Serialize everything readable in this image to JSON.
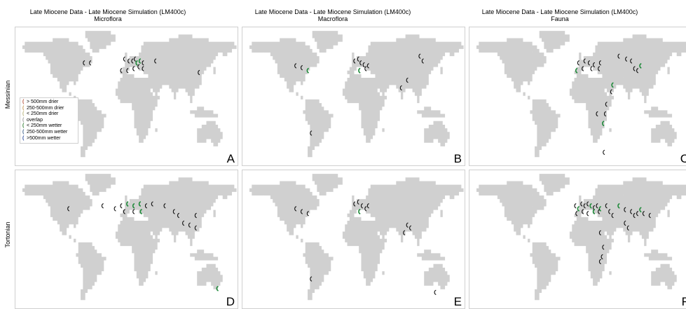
{
  "panels": [
    {
      "letter": "A",
      "title": "Late Miocene Data - Late Miocene Simulation (LM400c)",
      "subtitle": "Microflora",
      "row": "messinian"
    },
    {
      "letter": "B",
      "title": "Late Miocene Data - Late Miocene Simulation (LM400c)",
      "subtitle": "Macroflora",
      "row": "messinian"
    },
    {
      "letter": "C",
      "title": "Late Miocene Data - Late Miocene Simulation (LM400c)",
      "subtitle": "Fauna",
      "row": "messinian"
    },
    {
      "letter": "D",
      "row": "tortonian"
    },
    {
      "letter": "E",
      "row": "tortonian"
    },
    {
      "letter": "F",
      "row": "tortonian"
    }
  ],
  "rows": {
    "messinian": "Messinian",
    "tortonian": "Tortonian"
  },
  "legend": [
    {
      "label": "> 500mm drier",
      "color": "#b5513a"
    },
    {
      "label": "250-500mm drier",
      "color": "#c99a55"
    },
    {
      "label": "< 250mm drier",
      "color": "#b8b37a"
    },
    {
      "label": "overlap",
      "color": "#9a9a9a"
    },
    {
      "label": "< 250mm wetter",
      "color": "#2e7d32"
    },
    {
      "label": "250-500mm wetter",
      "color": "#3a5f8a"
    },
    {
      "label": ">500mm wetter",
      "color": "#2b4c9e"
    }
  ],
  "colors": {
    "land": "#d0d0d0",
    "ocean": "#ffffff",
    "marker": "#111111",
    "wetter": "#1f8a3a"
  },
  "chart_data": {
    "type": "scatter",
    "map": true,
    "xlim": [
      -180,
      180
    ],
    "ylim": [
      -60,
      85
    ],
    "panels": {
      "A": [
        [
          -5,
          52
        ],
        [
          2,
          50
        ],
        [
          8,
          50
        ],
        [
          12,
          52
        ],
        [
          15,
          48
        ],
        [
          20,
          50
        ],
        [
          25,
          48
        ],
        [
          -10,
          40
        ],
        [
          0,
          40
        ],
        [
          10,
          42
        ],
        [
          18,
          44
        ],
        [
          25,
          42
        ],
        [
          45,
          50
        ],
        [
          115,
          38
        ],
        [
          -70,
          48
        ],
        [
          -60,
          48
        ]
      ],
      "B": [
        [
          -95,
          45
        ],
        [
          -85,
          43
        ],
        [
          -75,
          40
        ],
        [
          0,
          50
        ],
        [
          6,
          52
        ],
        [
          10,
          48
        ],
        [
          15,
          46
        ],
        [
          18,
          42
        ],
        [
          22,
          45
        ],
        [
          8,
          40
        ],
        [
          85,
          30
        ],
        [
          75,
          22
        ],
        [
          -70,
          -25
        ],
        [
          105,
          55
        ],
        [
          110,
          50
        ]
      ],
      "C": [
        [
          -5,
          48
        ],
        [
          5,
          50
        ],
        [
          12,
          48
        ],
        [
          20,
          46
        ],
        [
          30,
          48
        ],
        [
          -8,
          40
        ],
        [
          2,
          42
        ],
        [
          16,
          42
        ],
        [
          28,
          42
        ],
        [
          60,
          55
        ],
        [
          72,
          52
        ],
        [
          80,
          50
        ],
        [
          85,
          42
        ],
        [
          90,
          40
        ],
        [
          95,
          45
        ],
        [
          50,
          25
        ],
        [
          48,
          18
        ],
        [
          40,
          5
        ],
        [
          38,
          -5
        ],
        [
          35,
          -15
        ],
        [
          36,
          -45
        ],
        [
          25,
          -5
        ]
      ],
      "D": [
        [
          -95,
          45
        ],
        [
          -40,
          48
        ],
        [
          -20,
          45
        ],
        [
          -10,
          48
        ],
        [
          0,
          50
        ],
        [
          10,
          48
        ],
        [
          20,
          50
        ],
        [
          30,
          48
        ],
        [
          -5,
          42
        ],
        [
          10,
          42
        ],
        [
          22,
          42
        ],
        [
          40,
          50
        ],
        [
          60,
          48
        ],
        [
          75,
          42
        ],
        [
          82,
          38
        ],
        [
          90,
          30
        ],
        [
          100,
          28
        ],
        [
          110,
          38
        ],
        [
          110,
          25
        ],
        [
          145,
          -38
        ]
      ],
      "E": [
        [
          -95,
          45
        ],
        [
          -85,
          42
        ],
        [
          -75,
          40
        ],
        [
          0,
          50
        ],
        [
          6,
          52
        ],
        [
          12,
          48
        ],
        [
          18,
          45
        ],
        [
          22,
          48
        ],
        [
          8,
          42
        ],
        [
          85,
          28
        ],
        [
          90,
          25
        ],
        [
          80,
          20
        ],
        [
          -70,
          -28
        ],
        [
          130,
          -42
        ]
      ],
      "F": [
        [
          -10,
          48
        ],
        [
          -5,
          45
        ],
        [
          0,
          50
        ],
        [
          5,
          48
        ],
        [
          10,
          50
        ],
        [
          15,
          48
        ],
        [
          20,
          46
        ],
        [
          25,
          48
        ],
        [
          30,
          45
        ],
        [
          -8,
          40
        ],
        [
          2,
          42
        ],
        [
          10,
          40
        ],
        [
          20,
          42
        ],
        [
          28,
          42
        ],
        [
          40,
          48
        ],
        [
          45,
          42
        ],
        [
          50,
          38
        ],
        [
          60,
          48
        ],
        [
          70,
          44
        ],
        [
          80,
          42
        ],
        [
          85,
          38
        ],
        [
          90,
          40
        ],
        [
          95,
          44
        ],
        [
          100,
          40
        ],
        [
          110,
          38
        ],
        [
          70,
          30
        ],
        [
          75,
          25
        ],
        [
          30,
          20
        ],
        [
          35,
          5
        ],
        [
          33,
          -5
        ],
        [
          30,
          -10
        ]
      ]
    },
    "wetter_indices": {
      "A": [
        4,
        5
      ],
      "B": [
        2,
        9
      ],
      "C": [
        5,
        14,
        15,
        19
      ],
      "D": [
        4,
        5,
        6,
        10,
        19
      ],
      "E": [
        8
      ],
      "F": [
        1,
        5,
        8,
        12,
        17,
        22
      ]
    }
  }
}
